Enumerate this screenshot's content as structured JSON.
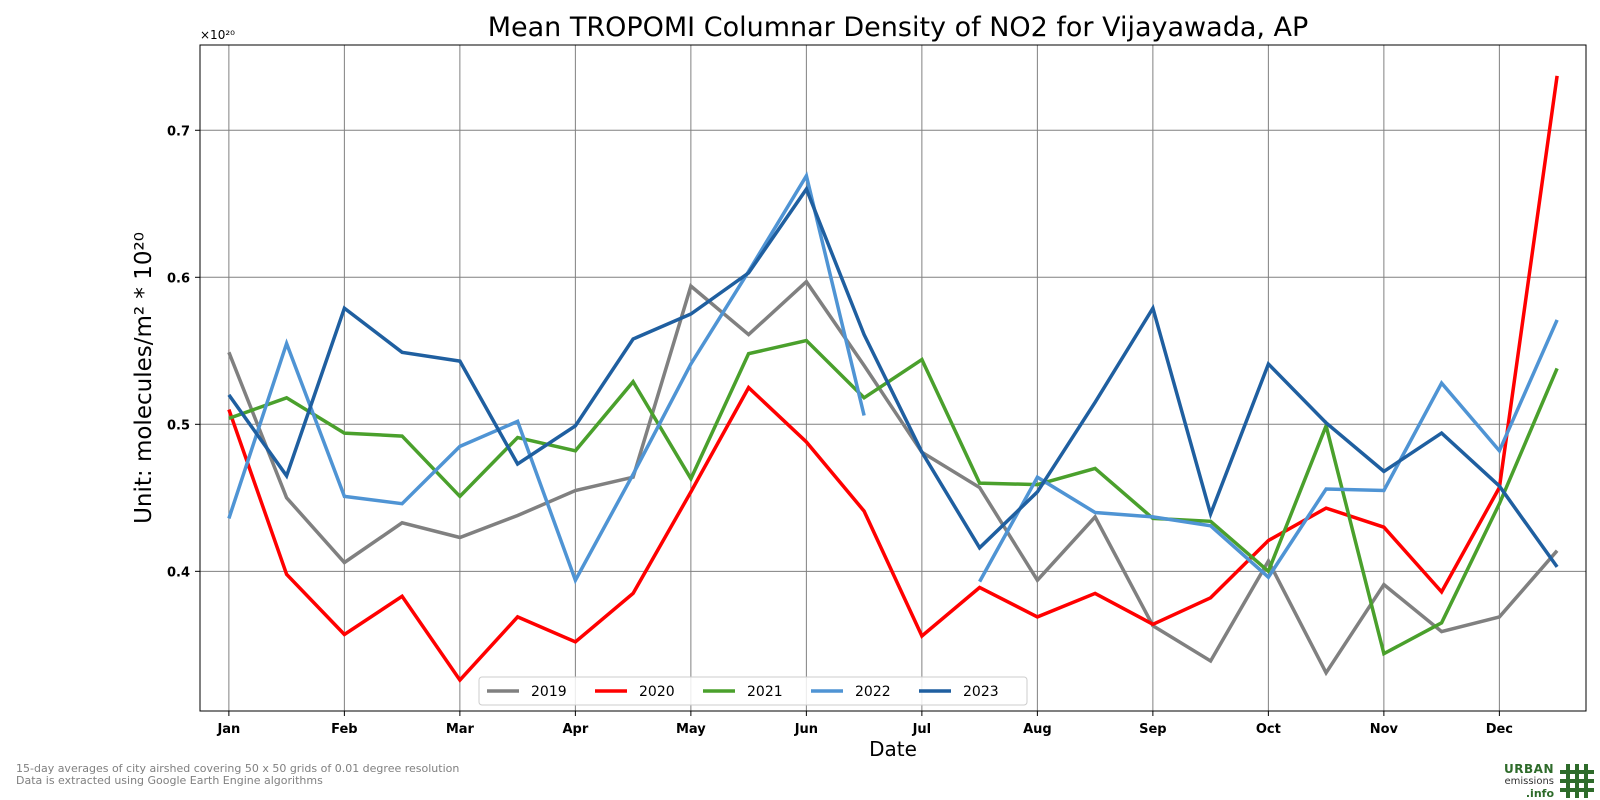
{
  "chart_data": {
    "type": "line",
    "title": "Mean TROPOMI Columnar Density of NO2 for Vijayawada, AP",
    "xlabel": "Date",
    "ylabel": "Unit: molecules/m² * 10²⁰",
    "offset_text": "×10²⁰",
    "x_ticks": [
      "Jan",
      "Feb",
      "Mar",
      "Apr",
      "May",
      "Jun",
      "Jul",
      "Aug",
      "Sep",
      "Oct",
      "Nov",
      "Dec"
    ],
    "y_ticks": [
      "0.4",
      "0.5",
      "0.6",
      "0.7"
    ],
    "y_tick_values": [
      0.4,
      0.5,
      0.6,
      0.7
    ],
    "xlim": [
      0.5,
      24.5
    ],
    "ylim": [
      0.305,
      0.758
    ],
    "grid": true,
    "legend_position": "bottom-center",
    "series": [
      {
        "name": "2019",
        "color": "#808080",
        "x": [
          1,
          2,
          3,
          4,
          5,
          6,
          7,
          8,
          9,
          10,
          11,
          12,
          13,
          14,
          15,
          16,
          17,
          18,
          19,
          20,
          21,
          22,
          23,
          24
        ],
        "y": [
          0.549,
          0.45,
          0.406,
          0.433,
          0.423,
          0.438,
          0.455,
          0.464,
          0.594,
          0.561,
          0.597,
          0.54,
          0.481,
          0.457,
          0.394,
          0.437,
          0.363,
          0.339,
          0.407,
          0.331,
          0.391,
          0.359,
          0.369,
          0.414
        ]
      },
      {
        "name": "2020",
        "color": "#ff0000",
        "x": [
          1,
          2,
          3,
          4,
          5,
          6,
          7,
          8,
          9,
          10,
          11,
          12,
          13,
          14,
          15,
          16,
          17,
          18,
          19,
          20,
          21,
          22,
          23,
          24
        ],
        "y": [
          0.51,
          0.398,
          0.357,
          0.383,
          0.326,
          0.369,
          0.352,
          0.385,
          0.454,
          0.525,
          0.488,
          0.441,
          0.356,
          0.389,
          0.369,
          0.385,
          0.364,
          0.382,
          0.421,
          0.443,
          0.43,
          0.386,
          0.457,
          0.737
        ]
      },
      {
        "name": "2021",
        "color": "#4aa02c",
        "x": [
          1,
          2,
          3,
          4,
          5,
          6,
          7,
          8,
          9,
          10,
          11,
          12,
          13,
          14,
          15,
          16,
          17,
          18,
          19,
          20,
          21,
          22,
          23,
          24
        ],
        "y": [
          0.504,
          0.518,
          0.494,
          0.492,
          0.451,
          0.491,
          0.482,
          0.529,
          0.463,
          0.548,
          0.557,
          0.518,
          0.544,
          0.46,
          0.459,
          0.47,
          0.436,
          0.434,
          0.4,
          0.499,
          0.344,
          0.365,
          0.446,
          0.538
        ]
      },
      {
        "name": "2022",
        "color": "#4f94d4",
        "x": [
          1,
          2,
          3,
          4,
          5,
          6,
          7,
          8,
          9,
          10,
          11,
          12,
          14,
          15,
          16,
          17,
          18,
          19,
          20,
          21,
          22,
          23,
          24
        ],
        "y": [
          0.436,
          0.555,
          0.451,
          0.446,
          0.485,
          0.502,
          0.394,
          0.466,
          0.541,
          0.604,
          0.669,
          0.506,
          0.393,
          0.464,
          0.44,
          0.437,
          0.431,
          0.396,
          0.456,
          0.455,
          0.528,
          0.482,
          0.571
        ]
      },
      {
        "name": "2023",
        "color": "#1f5fa0",
        "x": [
          1,
          2,
          3,
          4,
          5,
          6,
          7,
          8,
          9,
          10,
          11,
          12,
          13,
          14,
          15,
          16,
          17,
          18,
          19,
          20,
          21,
          22,
          23,
          24
        ],
        "y": [
          0.52,
          0.465,
          0.579,
          0.549,
          0.543,
          0.473,
          0.499,
          0.558,
          0.575,
          0.603,
          0.66,
          0.561,
          0.481,
          0.416,
          0.454,
          0.515,
          0.579,
          0.439,
          0.541,
          0.501,
          0.468,
          0.494,
          0.458,
          0.403
        ]
      }
    ]
  },
  "footnotes": {
    "line1": "15-day averages of city airshed covering 50 x 50 grids of 0.01 degree resolution",
    "line2": "Data is extracted using Google Earth Engine algorithms"
  },
  "logo": {
    "line1": "URBAN",
    "line2": "emissions",
    "line3": ".info",
    "color": "#2e6b2a"
  }
}
